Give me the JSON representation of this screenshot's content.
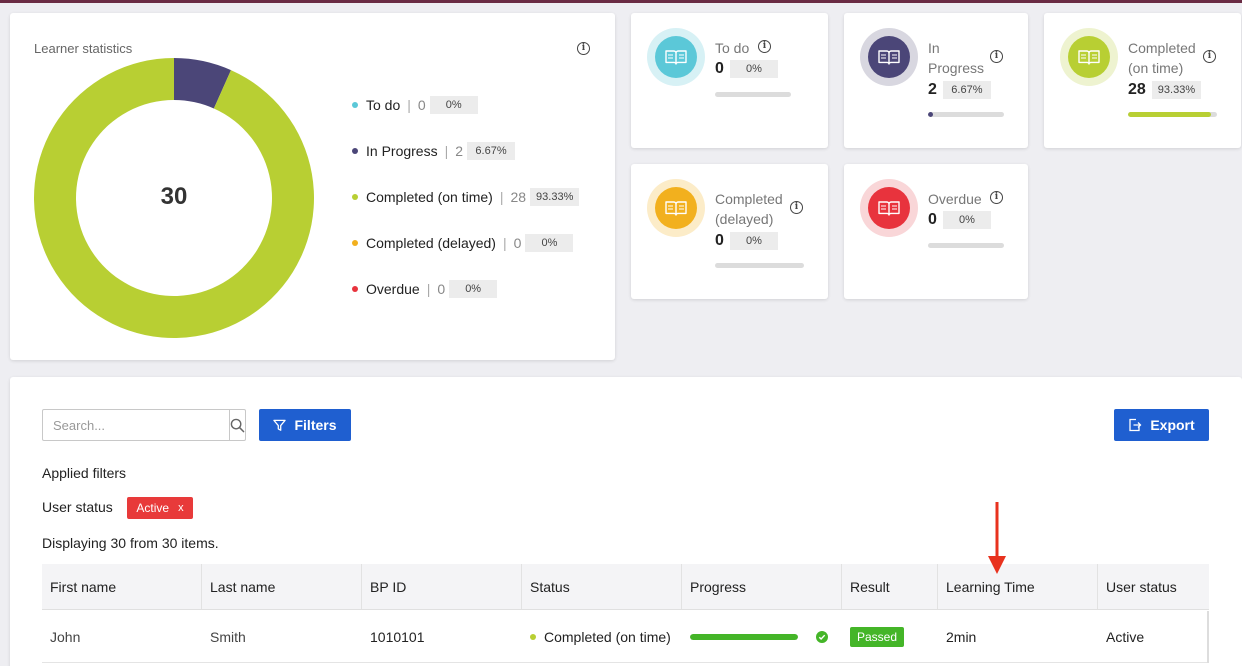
{
  "stats": {
    "title": "Learner statistics",
    "total": "30",
    "legend": [
      {
        "label": "To do",
        "count": "0",
        "pct": "0%",
        "color": "#5bc8d8"
      },
      {
        "label": "In Progress",
        "count": "2",
        "pct": "6.67%",
        "color": "#4b4678"
      },
      {
        "label": "Completed (on time)",
        "count": "28",
        "pct": "93.33%",
        "color": "#b8cf33"
      },
      {
        "label": "Completed (delayed)",
        "count": "0",
        "pct": "0%",
        "color": "#f2b01e"
      },
      {
        "label": "Overdue",
        "count": "0",
        "pct": "0%",
        "color": "#e8333d"
      }
    ],
    "donut_fractions": [
      0,
      0.0667,
      0.9333,
      0,
      0
    ]
  },
  "cards": [
    {
      "label": "To do",
      "value": "0",
      "pct": "0%",
      "fill": 0,
      "color": "#5bc8d8",
      "ring": "#d7f1f5",
      "icon": "book-icon"
    },
    {
      "label": "In Progress",
      "value": "2",
      "pct": "6.67%",
      "fill": 0.0667,
      "color": "#4b4678",
      "ring": "#d8d7e0",
      "icon": "book-icon"
    },
    {
      "label": "Completed (on time)",
      "value": "28",
      "pct": "93.33%",
      "fill": 0.9333,
      "color": "#b8cf33",
      "ring": "#eef3d0",
      "icon": "book-icon"
    },
    {
      "label": "Completed (delayed)",
      "value": "0",
      "pct": "0%",
      "fill": 0,
      "color": "#f2b01e",
      "ring": "#fcecc8",
      "icon": "book-icon"
    },
    {
      "label": "Overdue",
      "value": "0",
      "pct": "0%",
      "fill": 0,
      "color": "#e8333d",
      "ring": "#f9d6d8",
      "icon": "book-icon"
    }
  ],
  "toolbar": {
    "search_placeholder": "Search...",
    "filters_label": "Filters",
    "export_label": "Export"
  },
  "filters": {
    "applied_title": "Applied filters",
    "user_status_label": "User status",
    "active_chip": "Active",
    "chip_close": "x"
  },
  "display_count": "Displaying 30 from 30 items.",
  "table": {
    "columns": [
      "First name",
      "Last name",
      "BP ID",
      "Status",
      "Progress",
      "Result",
      "Learning Time",
      "User status"
    ],
    "rows": [
      {
        "first": "John",
        "last": "Smith",
        "bpid": "1010101",
        "status": "Completed (on time)",
        "progress": 1.0,
        "result": "Passed",
        "time": "2min",
        "user_status": "Active"
      }
    ]
  },
  "colors": {
    "accent": "#1f5fd0",
    "annotation_arrow": "#e8321e"
  }
}
